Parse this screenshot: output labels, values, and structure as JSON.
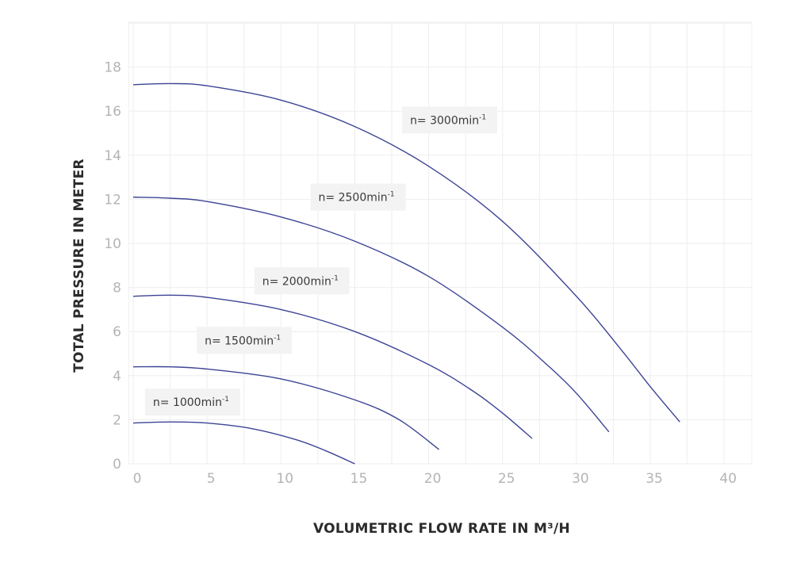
{
  "chart_data": {
    "type": "line",
    "title": "",
    "xlabel": "VOLUMETRIC FLOW RATE IN M³/H",
    "ylabel": "TOTAL PRESSURE IN METER",
    "xlim": [
      0,
      42
    ],
    "ylim": [
      0,
      19
    ],
    "x_ticks": [
      0,
      5,
      10,
      15,
      20,
      25,
      30,
      35,
      40
    ],
    "y_ticks": [
      0,
      2,
      4,
      6,
      8,
      10,
      12,
      14,
      16,
      18
    ],
    "grid": true,
    "legend_position": "inline labels",
    "line_color": "#3d4495",
    "series": [
      {
        "name": "n= 3000min-1",
        "label_main": "n= 3000min",
        "label_sup": "-1",
        "x": [
          0,
          2.5,
          5,
          10,
          15,
          20,
          25,
          30,
          33,
          35,
          37
        ],
        "y": [
          17.2,
          17.25,
          17.15,
          16.5,
          15.3,
          13.5,
          11.0,
          7.6,
          5.2,
          3.5,
          1.9
        ]
      },
      {
        "name": "n= 2500min-1",
        "label_main": "n= 2500min",
        "label_sup": "-1",
        "x": [
          0,
          2.5,
          5,
          10,
          15,
          20,
          25,
          28,
          30,
          32.2
        ],
        "y": [
          12.1,
          12.05,
          11.9,
          11.2,
          10.1,
          8.5,
          6.2,
          4.5,
          3.2,
          1.45
        ]
      },
      {
        "name": "n= 2000min-1",
        "label_main": "n= 2000min",
        "label_sup": "-1",
        "x": [
          0,
          2.5,
          5,
          10,
          15,
          20,
          23,
          25,
          27
        ],
        "y": [
          7.6,
          7.65,
          7.55,
          7.0,
          6.0,
          4.5,
          3.3,
          2.3,
          1.15
        ]
      },
      {
        "name": "n= 1500min-1",
        "label_main": "n= 1500min",
        "label_sup": "-1",
        "x": [
          0,
          2.5,
          5,
          10,
          15,
          18,
          20.7
        ],
        "y": [
          4.4,
          4.4,
          4.3,
          3.85,
          2.9,
          2.0,
          0.65
        ]
      },
      {
        "name": "n= 1000min-1",
        "label_main": "n= 1000min",
        "label_sup": "-1",
        "x": [
          0,
          2.5,
          5,
          8,
          11,
          13,
          15
        ],
        "y": [
          1.85,
          1.9,
          1.85,
          1.6,
          1.1,
          0.6,
          0.0
        ]
      }
    ],
    "label_positions": [
      {
        "x": 18.2,
        "y": 15.6
      },
      {
        "x": 12.0,
        "y": 12.1
      },
      {
        "x": 8.2,
        "y": 8.3
      },
      {
        "x": 4.3,
        "y": 5.6
      },
      {
        "x": 0.8,
        "y": 2.8
      }
    ]
  }
}
